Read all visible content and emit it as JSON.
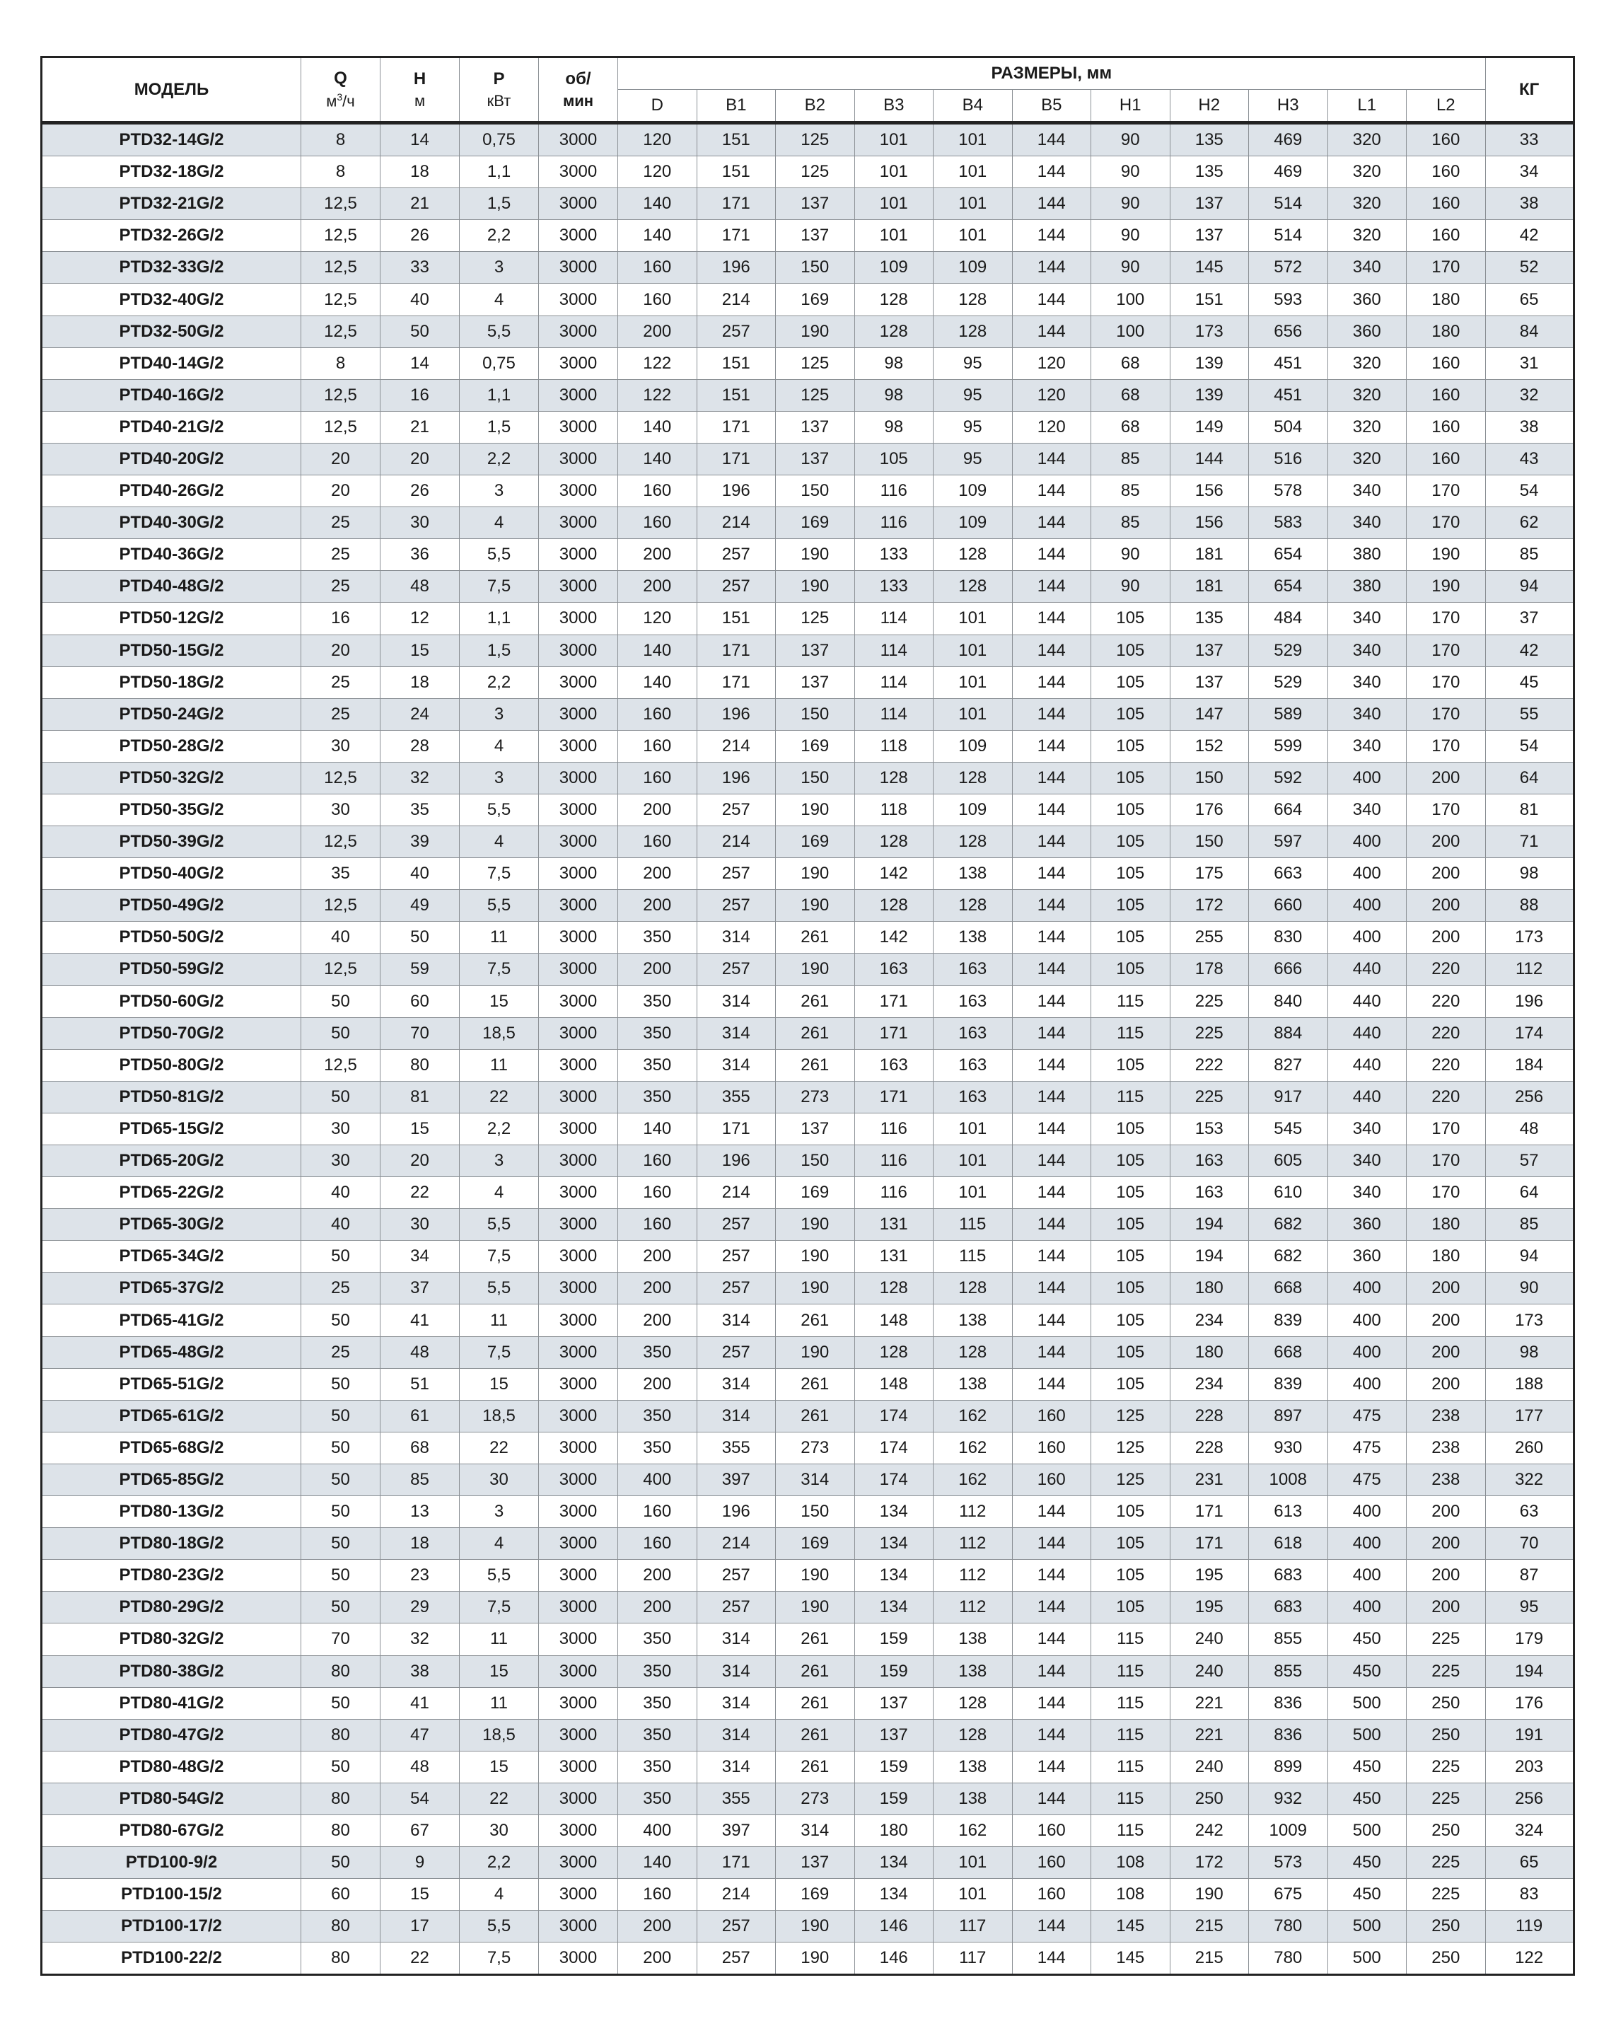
{
  "header": {
    "model": "МОДЕЛЬ",
    "q": "Q",
    "q_unit_base": "м",
    "q_unit_sup": "3",
    "q_unit_rest": "/ч",
    "h": "H",
    "h_unit": "м",
    "p": "P",
    "p_unit": "кВт",
    "rpm": "об/",
    "rpm_unit": "мин",
    "dims_group": "РАЗМЕРЫ, мм",
    "dims": [
      "D",
      "B1",
      "B2",
      "B3",
      "B4",
      "B5",
      "H1",
      "H2",
      "H3",
      "L1",
      "L2"
    ],
    "kg": "КГ"
  },
  "colors": {
    "stripe": "#dde3e9",
    "border": "#8a8f94",
    "frame": "#222222"
  },
  "table": {
    "rows": [
      [
        "PTD32-14G/2",
        "8",
        "14",
        "0,75",
        "3000",
        "120",
        "151",
        "125",
        "101",
        "101",
        "144",
        "90",
        "135",
        "469",
        "320",
        "160",
        "33"
      ],
      [
        "PTD32-18G/2",
        "8",
        "18",
        "1,1",
        "3000",
        "120",
        "151",
        "125",
        "101",
        "101",
        "144",
        "90",
        "135",
        "469",
        "320",
        "160",
        "34"
      ],
      [
        "PTD32-21G/2",
        "12,5",
        "21",
        "1,5",
        "3000",
        "140",
        "171",
        "137",
        "101",
        "101",
        "144",
        "90",
        "137",
        "514",
        "320",
        "160",
        "38"
      ],
      [
        "PTD32-26G/2",
        "12,5",
        "26",
        "2,2",
        "3000",
        "140",
        "171",
        "137",
        "101",
        "101",
        "144",
        "90",
        "137",
        "514",
        "320",
        "160",
        "42"
      ],
      [
        "PTD32-33G/2",
        "12,5",
        "33",
        "3",
        "3000",
        "160",
        "196",
        "150",
        "109",
        "109",
        "144",
        "90",
        "145",
        "572",
        "340",
        "170",
        "52"
      ],
      [
        "PTD32-40G/2",
        "12,5",
        "40",
        "4",
        "3000",
        "160",
        "214",
        "169",
        "128",
        "128",
        "144",
        "100",
        "151",
        "593",
        "360",
        "180",
        "65"
      ],
      [
        "PTD32-50G/2",
        "12,5",
        "50",
        "5,5",
        "3000",
        "200",
        "257",
        "190",
        "128",
        "128",
        "144",
        "100",
        "173",
        "656",
        "360",
        "180",
        "84"
      ],
      [
        "PTD40-14G/2",
        "8",
        "14",
        "0,75",
        "3000",
        "122",
        "151",
        "125",
        "98",
        "95",
        "120",
        "68",
        "139",
        "451",
        "320",
        "160",
        "31"
      ],
      [
        "PTD40-16G/2",
        "12,5",
        "16",
        "1,1",
        "3000",
        "122",
        "151",
        "125",
        "98",
        "95",
        "120",
        "68",
        "139",
        "451",
        "320",
        "160",
        "32"
      ],
      [
        "PTD40-21G/2",
        "12,5",
        "21",
        "1,5",
        "3000",
        "140",
        "171",
        "137",
        "98",
        "95",
        "120",
        "68",
        "149",
        "504",
        "320",
        "160",
        "38"
      ],
      [
        "PTD40-20G/2",
        "20",
        "20",
        "2,2",
        "3000",
        "140",
        "171",
        "137",
        "105",
        "95",
        "144",
        "85",
        "144",
        "516",
        "320",
        "160",
        "43"
      ],
      [
        "PTD40-26G/2",
        "20",
        "26",
        "3",
        "3000",
        "160",
        "196",
        "150",
        "116",
        "109",
        "144",
        "85",
        "156",
        "578",
        "340",
        "170",
        "54"
      ],
      [
        "PTD40-30G/2",
        "25",
        "30",
        "4",
        "3000",
        "160",
        "214",
        "169",
        "116",
        "109",
        "144",
        "85",
        "156",
        "583",
        "340",
        "170",
        "62"
      ],
      [
        "PTD40-36G/2",
        "25",
        "36",
        "5,5",
        "3000",
        "200",
        "257",
        "190",
        "133",
        "128",
        "144",
        "90",
        "181",
        "654",
        "380",
        "190",
        "85"
      ],
      [
        "PTD40-48G/2",
        "25",
        "48",
        "7,5",
        "3000",
        "200",
        "257",
        "190",
        "133",
        "128",
        "144",
        "90",
        "181",
        "654",
        "380",
        "190",
        "94"
      ],
      [
        "PTD50-12G/2",
        "16",
        "12",
        "1,1",
        "3000",
        "120",
        "151",
        "125",
        "114",
        "101",
        "144",
        "105",
        "135",
        "484",
        "340",
        "170",
        "37"
      ],
      [
        "PTD50-15G/2",
        "20",
        "15",
        "1,5",
        "3000",
        "140",
        "171",
        "137",
        "114",
        "101",
        "144",
        "105",
        "137",
        "529",
        "340",
        "170",
        "42"
      ],
      [
        "PTD50-18G/2",
        "25",
        "18",
        "2,2",
        "3000",
        "140",
        "171",
        "137",
        "114",
        "101",
        "144",
        "105",
        "137",
        "529",
        "340",
        "170",
        "45"
      ],
      [
        "PTD50-24G/2",
        "25",
        "24",
        "3",
        "3000",
        "160",
        "196",
        "150",
        "114",
        "101",
        "144",
        "105",
        "147",
        "589",
        "340",
        "170",
        "55"
      ],
      [
        "PTD50-28G/2",
        "30",
        "28",
        "4",
        "3000",
        "160",
        "214",
        "169",
        "118",
        "109",
        "144",
        "105",
        "152",
        "599",
        "340",
        "170",
        "54"
      ],
      [
        "PTD50-32G/2",
        "12,5",
        "32",
        "3",
        "3000",
        "160",
        "196",
        "150",
        "128",
        "128",
        "144",
        "105",
        "150",
        "592",
        "400",
        "200",
        "64"
      ],
      [
        "PTD50-35G/2",
        "30",
        "35",
        "5,5",
        "3000",
        "200",
        "257",
        "190",
        "118",
        "109",
        "144",
        "105",
        "176",
        "664",
        "340",
        "170",
        "81"
      ],
      [
        "PTD50-39G/2",
        "12,5",
        "39",
        "4",
        "3000",
        "160",
        "214",
        "169",
        "128",
        "128",
        "144",
        "105",
        "150",
        "597",
        "400",
        "200",
        "71"
      ],
      [
        "PTD50-40G/2",
        "35",
        "40",
        "7,5",
        "3000",
        "200",
        "257",
        "190",
        "142",
        "138",
        "144",
        "105",
        "175",
        "663",
        "400",
        "200",
        "98"
      ],
      [
        "PTD50-49G/2",
        "12,5",
        "49",
        "5,5",
        "3000",
        "200",
        "257",
        "190",
        "128",
        "128",
        "144",
        "105",
        "172",
        "660",
        "400",
        "200",
        "88"
      ],
      [
        "PTD50-50G/2",
        "40",
        "50",
        "11",
        "3000",
        "350",
        "314",
        "261",
        "142",
        "138",
        "144",
        "105",
        "255",
        "830",
        "400",
        "200",
        "173"
      ],
      [
        "PTD50-59G/2",
        "12,5",
        "59",
        "7,5",
        "3000",
        "200",
        "257",
        "190",
        "163",
        "163",
        "144",
        "105",
        "178",
        "666",
        "440",
        "220",
        "112"
      ],
      [
        "PTD50-60G/2",
        "50",
        "60",
        "15",
        "3000",
        "350",
        "314",
        "261",
        "171",
        "163",
        "144",
        "115",
        "225",
        "840",
        "440",
        "220",
        "196"
      ],
      [
        "PTD50-70G/2",
        "50",
        "70",
        "18,5",
        "3000",
        "350",
        "314",
        "261",
        "171",
        "163",
        "144",
        "115",
        "225",
        "884",
        "440",
        "220",
        "174"
      ],
      [
        "PTD50-80G/2",
        "12,5",
        "80",
        "11",
        "3000",
        "350",
        "314",
        "261",
        "163",
        "163",
        "144",
        "105",
        "222",
        "827",
        "440",
        "220",
        "184"
      ],
      [
        "PTD50-81G/2",
        "50",
        "81",
        "22",
        "3000",
        "350",
        "355",
        "273",
        "171",
        "163",
        "144",
        "115",
        "225",
        "917",
        "440",
        "220",
        "256"
      ],
      [
        "PTD65-15G/2",
        "30",
        "15",
        "2,2",
        "3000",
        "140",
        "171",
        "137",
        "116",
        "101",
        "144",
        "105",
        "153",
        "545",
        "340",
        "170",
        "48"
      ],
      [
        "PTD65-20G/2",
        "30",
        "20",
        "3",
        "3000",
        "160",
        "196",
        "150",
        "116",
        "101",
        "144",
        "105",
        "163",
        "605",
        "340",
        "170",
        "57"
      ],
      [
        "PTD65-22G/2",
        "40",
        "22",
        "4",
        "3000",
        "160",
        "214",
        "169",
        "116",
        "101",
        "144",
        "105",
        "163",
        "610",
        "340",
        "170",
        "64"
      ],
      [
        "PTD65-30G/2",
        "40",
        "30",
        "5,5",
        "3000",
        "160",
        "257",
        "190",
        "131",
        "115",
        "144",
        "105",
        "194",
        "682",
        "360",
        "180",
        "85"
      ],
      [
        "PTD65-34G/2",
        "50",
        "34",
        "7,5",
        "3000",
        "200",
        "257",
        "190",
        "131",
        "115",
        "144",
        "105",
        "194",
        "682",
        "360",
        "180",
        "94"
      ],
      [
        "PTD65-37G/2",
        "25",
        "37",
        "5,5",
        "3000",
        "200",
        "257",
        "190",
        "128",
        "128",
        "144",
        "105",
        "180",
        "668",
        "400",
        "200",
        "90"
      ],
      [
        "PTD65-41G/2",
        "50",
        "41",
        "11",
        "3000",
        "200",
        "314",
        "261",
        "148",
        "138",
        "144",
        "105",
        "234",
        "839",
        "400",
        "200",
        "173"
      ],
      [
        "PTD65-48G/2",
        "25",
        "48",
        "7,5",
        "3000",
        "350",
        "257",
        "190",
        "128",
        "128",
        "144",
        "105",
        "180",
        "668",
        "400",
        "200",
        "98"
      ],
      [
        "PTD65-51G/2",
        "50",
        "51",
        "15",
        "3000",
        "200",
        "314",
        "261",
        "148",
        "138",
        "144",
        "105",
        "234",
        "839",
        "400",
        "200",
        "188"
      ],
      [
        "PTD65-61G/2",
        "50",
        "61",
        "18,5",
        "3000",
        "350",
        "314",
        "261",
        "174",
        "162",
        "160",
        "125",
        "228",
        "897",
        "475",
        "238",
        "177"
      ],
      [
        "PTD65-68G/2",
        "50",
        "68",
        "22",
        "3000",
        "350",
        "355",
        "273",
        "174",
        "162",
        "160",
        "125",
        "228",
        "930",
        "475",
        "238",
        "260"
      ],
      [
        "PTD65-85G/2",
        "50",
        "85",
        "30",
        "3000",
        "400",
        "397",
        "314",
        "174",
        "162",
        "160",
        "125",
        "231",
        "1008",
        "475",
        "238",
        "322"
      ],
      [
        "PTD80-13G/2",
        "50",
        "13",
        "3",
        "3000",
        "160",
        "196",
        "150",
        "134",
        "112",
        "144",
        "105",
        "171",
        "613",
        "400",
        "200",
        "63"
      ],
      [
        "PTD80-18G/2",
        "50",
        "18",
        "4",
        "3000",
        "160",
        "214",
        "169",
        "134",
        "112",
        "144",
        "105",
        "171",
        "618",
        "400",
        "200",
        "70"
      ],
      [
        "PTD80-23G/2",
        "50",
        "23",
        "5,5",
        "3000",
        "200",
        "257",
        "190",
        "134",
        "112",
        "144",
        "105",
        "195",
        "683",
        "400",
        "200",
        "87"
      ],
      [
        "PTD80-29G/2",
        "50",
        "29",
        "7,5",
        "3000",
        "200",
        "257",
        "190",
        "134",
        "112",
        "144",
        "105",
        "195",
        "683",
        "400",
        "200",
        "95"
      ],
      [
        "PTD80-32G/2",
        "70",
        "32",
        "11",
        "3000",
        "350",
        "314",
        "261",
        "159",
        "138",
        "144",
        "115",
        "240",
        "855",
        "450",
        "225",
        "179"
      ],
      [
        "PTD80-38G/2",
        "80",
        "38",
        "15",
        "3000",
        "350",
        "314",
        "261",
        "159",
        "138",
        "144",
        "115",
        "240",
        "855",
        "450",
        "225",
        "194"
      ],
      [
        "PTD80-41G/2",
        "50",
        "41",
        "11",
        "3000",
        "350",
        "314",
        "261",
        "137",
        "128",
        "144",
        "115",
        "221",
        "836",
        "500",
        "250",
        "176"
      ],
      [
        "PTD80-47G/2",
        "80",
        "47",
        "18,5",
        "3000",
        "350",
        "314",
        "261",
        "137",
        "128",
        "144",
        "115",
        "221",
        "836",
        "500",
        "250",
        "191"
      ],
      [
        "PTD80-48G/2",
        "50",
        "48",
        "15",
        "3000",
        "350",
        "314",
        "261",
        "159",
        "138",
        "144",
        "115",
        "240",
        "899",
        "450",
        "225",
        "203"
      ],
      [
        "PTD80-54G/2",
        "80",
        "54",
        "22",
        "3000",
        "350",
        "355",
        "273",
        "159",
        "138",
        "144",
        "115",
        "250",
        "932",
        "450",
        "225",
        "256"
      ],
      [
        "PTD80-67G/2",
        "80",
        "67",
        "30",
        "3000",
        "400",
        "397",
        "314",
        "180",
        "162",
        "160",
        "115",
        "242",
        "1009",
        "500",
        "250",
        "324"
      ],
      [
        "PTD100-9/2",
        "50",
        "9",
        "2,2",
        "3000",
        "140",
        "171",
        "137",
        "134",
        "101",
        "160",
        "108",
        "172",
        "573",
        "450",
        "225",
        "65"
      ],
      [
        "PTD100-15/2",
        "60",
        "15",
        "4",
        "3000",
        "160",
        "214",
        "169",
        "134",
        "101",
        "160",
        "108",
        "190",
        "675",
        "450",
        "225",
        "83"
      ],
      [
        "PTD100-17/2",
        "80",
        "17",
        "5,5",
        "3000",
        "200",
        "257",
        "190",
        "146",
        "117",
        "144",
        "145",
        "215",
        "780",
        "500",
        "250",
        "119"
      ],
      [
        "PTD100-22/2",
        "80",
        "22",
        "7,5",
        "3000",
        "200",
        "257",
        "190",
        "146",
        "117",
        "144",
        "145",
        "215",
        "780",
        "500",
        "250",
        "122"
      ]
    ]
  }
}
